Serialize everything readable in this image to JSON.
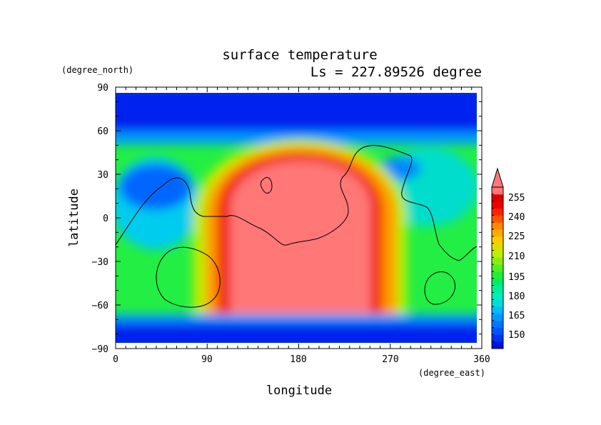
{
  "chart_data": {
    "type": "heatmap",
    "title": "surface temperature",
    "subtitle": "Ls = 227.89526 degree",
    "xlabel": "longitude",
    "ylabel": "latitude",
    "x_units": "(degree_east)",
    "y_units": "(degree_north)",
    "xlim": [
      0,
      360
    ],
    "ylim": [
      -90,
      90
    ],
    "x_ticks": [
      "0",
      "90",
      "180",
      "270",
      "360"
    ],
    "y_ticks": [
      "90",
      "60",
      "30",
      "0",
      "−30",
      "−60",
      "−90"
    ],
    "colorbar": {
      "tick_labels": [
        "150",
        "165",
        "180",
        "195",
        "210",
        "225",
        "240",
        "255"
      ],
      "min": 145,
      "max": 260,
      "step": 5,
      "extend": "max",
      "colors": [
        "#0011dd",
        "#0033ee",
        "#0055ff",
        "#0077ff",
        "#0099ff",
        "#00bbff",
        "#00dddd",
        "#00eebb",
        "#00ee99",
        "#00ee66",
        "#22ee33",
        "#55ee22",
        "#88ee11",
        "#bbee00",
        "#dddd00",
        "#ffcc00",
        "#ffaa00",
        "#ff8800",
        "#ff5500",
        "#ff2200",
        "#ee0000",
        "#dd0000",
        "#ff7777"
      ]
    },
    "features": {
      "warm_region": "broad maximum centred near 180° east, from about 40° north to 70° south, above 255",
      "cold_caps": "below 150 north of about 60° north and south of about 70° south"
    }
  }
}
